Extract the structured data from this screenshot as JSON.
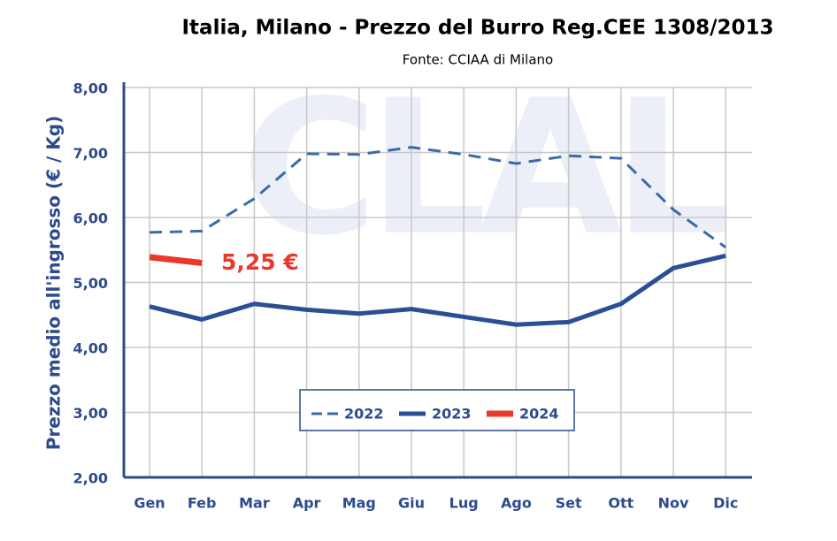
{
  "chart_data": {
    "type": "line",
    "title": "Italia, Milano - Prezzo del Burro Reg.CEE 1308/2013",
    "subtitle": "Fonte: CCIAA di Milano",
    "watermark": "CLAL",
    "y_label": "Prezzo medio all'ingrosso (€ / Kg)",
    "annotation": "5,25 €",
    "categories": [
      "Gen",
      "Feb",
      "Mar",
      "Apr",
      "Mag",
      "Giu",
      "Lug",
      "Ago",
      "Set",
      "Ott",
      "Nov",
      "Dic"
    ],
    "series": [
      {
        "name": "2022",
        "color": "#3a6aa8",
        "line_style": "dashed",
        "values": [
          5.77,
          5.79,
          6.29,
          6.98,
          6.97,
          7.08,
          6.97,
          6.83,
          6.95,
          6.91,
          6.12,
          5.54
        ]
      },
      {
        "name": "2023",
        "color": "#2b4f95",
        "line_style": "solid",
        "values": [
          4.63,
          4.43,
          4.67,
          4.58,
          4.52,
          4.59,
          4.47,
          4.35,
          4.39,
          4.67,
          5.22,
          5.41
        ]
      },
      {
        "name": "2024",
        "color": "#e8392b",
        "line_style": "solid",
        "values": [
          5.39,
          5.3,
          null,
          null,
          null,
          null,
          null,
          null,
          null,
          null,
          null,
          null
        ]
      }
    ],
    "ylim": [
      2,
      8
    ],
    "yticks": [
      {
        "value": 2,
        "label": "2,00"
      },
      {
        "value": 3,
        "label": "3,00"
      },
      {
        "value": 4,
        "label": "4,00"
      },
      {
        "value": 5,
        "label": "5,00"
      },
      {
        "value": 6,
        "label": "6,00"
      },
      {
        "value": 7,
        "label": "7,00"
      },
      {
        "value": 8,
        "label": "8,00"
      }
    ],
    "grid": true,
    "legend": "bottom"
  }
}
